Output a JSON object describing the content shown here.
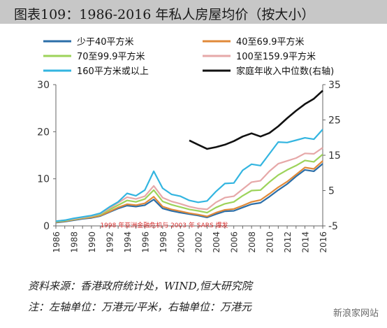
{
  "title": "图表109：1986-2016 年私人房屋均价（按大小）",
  "source": "资料来源：香港政府统计处，WIND,恒大研究院",
  "note": "注：左轴单位：万港元/平米，右轴单位：万港元",
  "watermark": "新浪家网站",
  "chart_data": {
    "type": "line",
    "x": [
      1986,
      1987,
      1988,
      1989,
      1990,
      1991,
      1992,
      1993,
      1994,
      1995,
      1996,
      1997,
      1998,
      1999,
      2000,
      2001,
      2002,
      2003,
      2004,
      2005,
      2006,
      2007,
      2008,
      2009,
      2010,
      2011,
      2012,
      2013,
      2014,
      2015,
      2016
    ],
    "x_ticks": [
      "1986",
      "1988",
      "1990",
      "1992",
      "1994",
      "1996",
      "1998",
      "2000",
      "2002",
      "2004",
      "2006",
      "2008",
      "2010",
      "2012",
      "2014",
      "2016"
    ],
    "left_axis": {
      "ylim": [
        0,
        30
      ],
      "ticks": [
        "0",
        "10",
        "20",
        "30"
      ]
    },
    "right_axis": {
      "ylim": [
        -5,
        35
      ],
      "ticks": [
        "-5",
        "5",
        "15",
        "25",
        "35"
      ]
    },
    "annotation": "1998 年亚洲金融危机与 2003 年 SARS 爆发",
    "series": [
      {
        "name": "少于40平方米",
        "color": "#2b6ea8",
        "axis": "left",
        "values": [
          0.7,
          0.9,
          1.2,
          1.5,
          1.7,
          2.1,
          2.9,
          3.7,
          4.3,
          4.1,
          4.4,
          5.6,
          3.7,
          3.2,
          2.8,
          2.5,
          2.2,
          1.8,
          2.5,
          3.1,
          3.2,
          3.9,
          4.6,
          4.9,
          6.2,
          7.6,
          8.9,
          10.5,
          11.9,
          11.6,
          13.2
        ]
      },
      {
        "name": "40至69.9平方米",
        "color": "#e08a3a",
        "axis": "left",
        "values": [
          0.8,
          1.0,
          1.3,
          1.6,
          1.8,
          2.2,
          3.0,
          3.9,
          4.6,
          4.4,
          4.8,
          6.2,
          4.1,
          3.5,
          3.1,
          2.7,
          2.4,
          2.0,
          2.8,
          3.4,
          3.6,
          4.3,
          5.1,
          5.5,
          6.8,
          8.2,
          9.4,
          10.9,
          12.4,
          12.1,
          13.8
        ]
      },
      {
        "name": "70至99.9平方米",
        "color": "#9dd35a",
        "axis": "left",
        "values": [
          0.9,
          1.1,
          1.4,
          1.7,
          2.0,
          2.4,
          3.4,
          4.4,
          5.4,
          5.1,
          5.7,
          7.6,
          5.2,
          4.5,
          4.0,
          3.5,
          3.2,
          2.8,
          3.9,
          4.7,
          5.1,
          6.4,
          7.5,
          7.6,
          9.3,
          10.8,
          11.9,
          12.8,
          13.9,
          13.6,
          15.2
        ]
      },
      {
        "name": "100至159.9平方米",
        "color": "#e6a8a8",
        "axis": "left",
        "values": [
          1.0,
          1.2,
          1.5,
          1.8,
          2.1,
          2.6,
          3.7,
          4.9,
          6.1,
          5.7,
          6.3,
          8.5,
          6.0,
          5.2,
          4.7,
          4.1,
          3.7,
          3.5,
          5.0,
          6.0,
          6.3,
          7.8,
          9.3,
          9.6,
          11.6,
          13.2,
          13.8,
          14.4,
          15.4,
          15.3,
          16.6
        ]
      },
      {
        "name": "160平方米或以上",
        "color": "#33b5e0",
        "axis": "left",
        "values": [
          1.0,
          1.2,
          1.6,
          1.9,
          2.2,
          2.7,
          4.0,
          5.1,
          6.9,
          6.4,
          7.6,
          11.6,
          8.0,
          6.7,
          6.3,
          5.4,
          5.0,
          5.3,
          7.3,
          9.0,
          9.1,
          11.8,
          13.1,
          12.8,
          15.3,
          17.8,
          17.7,
          18.2,
          18.7,
          18.4,
          20.5
        ]
      },
      {
        "name": "家庭年收入中位数(右轴)",
        "color": "#111111",
        "axis": "right",
        "x": [
          2001,
          2002,
          2003,
          2004,
          2005,
          2006,
          2007,
          2008,
          2009,
          2010,
          2011,
          2012,
          2013,
          2014,
          2015,
          2016
        ],
        "values": [
          19.2,
          18.0,
          16.8,
          17.3,
          18.0,
          19.0,
          20.3,
          21.2,
          20.3,
          21.3,
          23.2,
          25.5,
          27.6,
          29.5,
          31.0,
          33.3
        ]
      }
    ]
  }
}
